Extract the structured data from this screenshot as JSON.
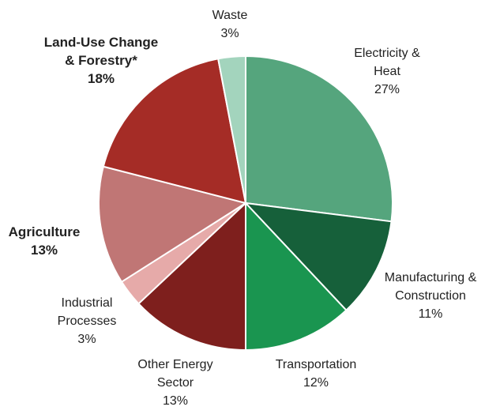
{
  "chart_data": {
    "type": "pie",
    "start": "12 o'clock",
    "direction": "clockwise",
    "slices": [
      {
        "lines": [
          "Electricity &",
          "Heat"
        ],
        "pct_label": "27%",
        "value": 27,
        "color": "#55a57d",
        "bold": false
      },
      {
        "lines": [
          "Manufacturing &",
          "Construction"
        ],
        "pct_label": "11%",
        "value": 11,
        "color": "#16603a",
        "bold": false
      },
      {
        "lines": [
          "Transportation"
        ],
        "pct_label": "12%",
        "value": 12,
        "color": "#1a9550",
        "bold": false
      },
      {
        "lines": [
          "Other Energy",
          "Sector"
        ],
        "pct_label": "13%",
        "value": 13,
        "color": "#7e1f1d",
        "bold": false
      },
      {
        "lines": [
          "Industrial",
          "Processes"
        ],
        "pct_label": "3%",
        "value": 3,
        "color": "#e6aaa9",
        "bold": false
      },
      {
        "lines": [
          "Agriculture"
        ],
        "pct_label": "13%",
        "value": 13,
        "color": "#c07675",
        "bold": true
      },
      {
        "lines": [
          "Land-Use Change",
          "& Forestry*"
        ],
        "pct_label": "18%",
        "value": 18,
        "color": "#a52c26",
        "bold": true
      },
      {
        "lines": [
          "Waste"
        ],
        "pct_label": "3%",
        "value": 3,
        "color": "#a3d4bd",
        "bold": false
      }
    ]
  }
}
